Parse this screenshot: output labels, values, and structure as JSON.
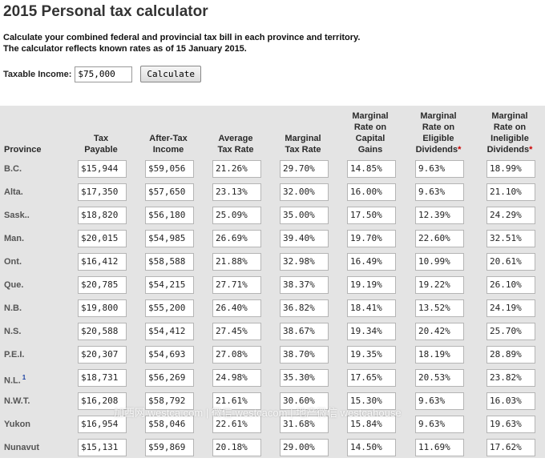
{
  "page": {
    "title": "2015 Personal tax calculator",
    "intro_line1": "Calculate your combined federal and provincial tax bill in each province and territory.",
    "intro_line2": "The calculator reflects known rates as of 15 January 2015."
  },
  "income": {
    "label": "Taxable Income:",
    "value": "$75,000",
    "button_label": "Calculate"
  },
  "table": {
    "headers": {
      "province": "Province",
      "tax_payable": [
        "Tax",
        "Payable"
      ],
      "after_tax": [
        "After-Tax",
        "Income"
      ],
      "average_rate": [
        "Average",
        "Tax Rate"
      ],
      "marginal_rate": [
        "Marginal",
        "Tax Rate"
      ],
      "capital_gains": [
        "Marginal",
        "Rate on",
        "Capital",
        "Gains"
      ],
      "eligible_div": [
        "Marginal",
        "Rate on",
        "Eligible",
        "Dividends"
      ],
      "ineligible_div": [
        "Marginal",
        "Rate on",
        "Ineligible",
        "Dividends"
      ],
      "required_mark": "*"
    },
    "rows": [
      {
        "province": "B.C.",
        "note": "",
        "tax": "$15,944",
        "after": "$59,056",
        "avg": "21.26%",
        "marg": "29.70%",
        "cap": "14.85%",
        "elig": "9.63%",
        "inelig": "18.99%"
      },
      {
        "province": "Alta.",
        "note": "",
        "tax": "$17,350",
        "after": "$57,650",
        "avg": "23.13%",
        "marg": "32.00%",
        "cap": "16.00%",
        "elig": "9.63%",
        "inelig": "21.10%"
      },
      {
        "province": "Sask..",
        "note": "",
        "tax": "$18,820",
        "after": "$56,180",
        "avg": "25.09%",
        "marg": "35.00%",
        "cap": "17.50%",
        "elig": "12.39%",
        "inelig": "24.29%"
      },
      {
        "province": "Man.",
        "note": "",
        "tax": "$20,015",
        "after": "$54,985",
        "avg": "26.69%",
        "marg": "39.40%",
        "cap": "19.70%",
        "elig": "22.60%",
        "inelig": "32.51%"
      },
      {
        "province": "Ont.",
        "note": "",
        "tax": "$16,412",
        "after": "$58,588",
        "avg": "21.88%",
        "marg": "32.98%",
        "cap": "16.49%",
        "elig": "10.99%",
        "inelig": "20.61%"
      },
      {
        "province": "Que.",
        "note": "",
        "tax": "$20,785",
        "after": "$54,215",
        "avg": "27.71%",
        "marg": "38.37%",
        "cap": "19.19%",
        "elig": "19.22%",
        "inelig": "26.10%"
      },
      {
        "province": "N.B.",
        "note": "",
        "tax": "$19,800",
        "after": "$55,200",
        "avg": "26.40%",
        "marg": "36.82%",
        "cap": "18.41%",
        "elig": "13.52%",
        "inelig": "24.19%"
      },
      {
        "province": "N.S.",
        "note": "",
        "tax": "$20,588",
        "after": "$54,412",
        "avg": "27.45%",
        "marg": "38.67%",
        "cap": "19.34%",
        "elig": "20.42%",
        "inelig": "25.70%"
      },
      {
        "province": "P.E.I.",
        "note": "",
        "tax": "$20,307",
        "after": "$54,693",
        "avg": "27.08%",
        "marg": "38.70%",
        "cap": "19.35%",
        "elig": "18.19%",
        "inelig": "28.89%"
      },
      {
        "province": "N.L.",
        "note": "1",
        "tax": "$18,731",
        "after": "$56,269",
        "avg": "24.98%",
        "marg": "35.30%",
        "cap": "17.65%",
        "elig": "20.53%",
        "inelig": "23.82%"
      },
      {
        "province": "N.W.T.",
        "note": "",
        "tax": "$16,208",
        "after": "$58,792",
        "avg": "21.61%",
        "marg": "30.60%",
        "cap": "15.30%",
        "elig": "9.63%",
        "inelig": "16.03%"
      },
      {
        "province": "Yukon",
        "note": "",
        "tax": "$16,954",
        "after": "$58,046",
        "avg": "22.61%",
        "marg": "31.68%",
        "cap": "15.84%",
        "elig": "9.63%",
        "inelig": "19.63%"
      },
      {
        "province": "Nunavut",
        "note": "",
        "tax": "$15,131",
        "after": "$59,869",
        "avg": "20.18%",
        "marg": "29.00%",
        "cap": "14.50%",
        "elig": "11.69%",
        "inelig": "17.62%"
      }
    ]
  },
  "watermark": "加西网 westca.com | 微信 westcacom | 地产微信 westcahouse"
}
